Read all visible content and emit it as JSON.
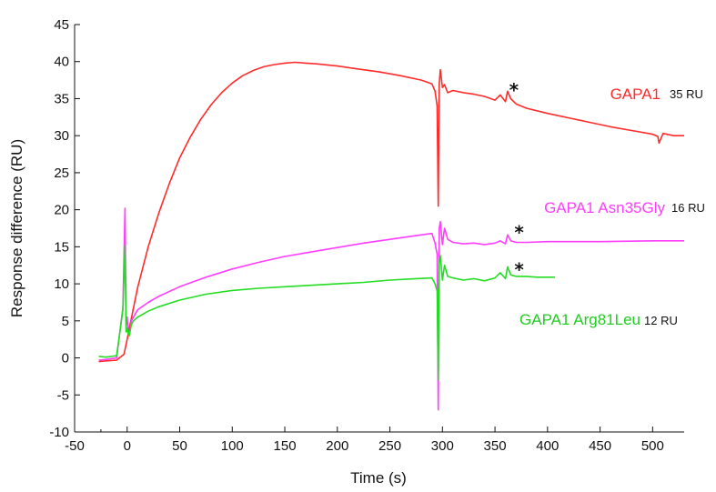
{
  "chart_data": {
    "type": "line",
    "title": "",
    "xlabel": "Time (s)",
    "ylabel": "Response difference (RU)",
    "xlim": [
      -50,
      530
    ],
    "ylim": [
      -10,
      45
    ],
    "xticks": [
      -50,
      -25,
      0,
      50,
      100,
      150,
      200,
      250,
      300,
      350,
      400,
      450,
      500
    ],
    "xtick_labels": [
      "-50",
      "",
      "0",
      "50",
      "100",
      "150",
      "200",
      "250",
      "300",
      "350",
      "400",
      "450",
      "500"
    ],
    "yticks": [
      -10,
      -5,
      0,
      5,
      10,
      15,
      20,
      25,
      30,
      35,
      40,
      45
    ],
    "ytick_labels": [
      "-10",
      "-5",
      "0",
      "5",
      "10",
      "15",
      "20",
      "25",
      "30",
      "35",
      "40",
      "45"
    ],
    "grid": false,
    "series": [
      {
        "name": "GAPA1",
        "response_label": "35 RU",
        "color": "#ff2b2b",
        "x": [
          -27,
          -20,
          -10,
          -3,
          0,
          2,
          5,
          10,
          20,
          30,
          40,
          50,
          60,
          70,
          80,
          90,
          100,
          110,
          120,
          130,
          140,
          150,
          160,
          170,
          180,
          200,
          220,
          240,
          260,
          280,
          290,
          293,
          295,
          296,
          297,
          298,
          300,
          302,
          305,
          310,
          320,
          330,
          340,
          350,
          355,
          360,
          362,
          365,
          370,
          380,
          400,
          420,
          440,
          460,
          480,
          500,
          505,
          506,
          510,
          520,
          530
        ],
        "y": [
          -0.5,
          -0.4,
          -0.3,
          0.5,
          2.5,
          4.0,
          6.0,
          9.5,
          15.0,
          19.5,
          23.5,
          27.0,
          29.8,
          32.2,
          34.2,
          35.8,
          37.1,
          38.1,
          38.8,
          39.3,
          39.6,
          39.8,
          39.9,
          39.8,
          39.7,
          39.4,
          39.0,
          38.6,
          38.1,
          37.5,
          37.0,
          36.0,
          34.0,
          20.5,
          37.0,
          38.9,
          36.5,
          36.9,
          35.8,
          36.1,
          35.8,
          35.6,
          35.3,
          34.8,
          35.5,
          34.6,
          36.0,
          35.0,
          34.3,
          33.7,
          33.0,
          32.4,
          31.8,
          31.2,
          30.7,
          30.2,
          29.9,
          29.0,
          30.3,
          30.0,
          30.0
        ]
      },
      {
        "name": "GAPA1 Asn35Gly",
        "response_label": "16 RU",
        "color": "#ff3dff",
        "x": [
          -27,
          -20,
          -10,
          -4,
          -2,
          -1,
          0,
          1,
          2,
          4,
          6,
          10,
          20,
          30,
          50,
          75,
          100,
          125,
          150,
          175,
          200,
          225,
          250,
          275,
          290,
          293,
          295,
          296,
          297,
          298,
          300,
          302,
          305,
          310,
          320,
          330,
          340,
          350,
          355,
          360,
          362,
          365,
          370,
          380,
          400,
          450,
          500,
          530
        ],
        "y": [
          -0.3,
          -0.2,
          0.0,
          6.8,
          20.2,
          4.5,
          5.5,
          3.5,
          3.0,
          5.0,
          5.5,
          6.5,
          7.5,
          8.3,
          9.6,
          10.9,
          12.0,
          12.9,
          13.7,
          14.3,
          14.9,
          15.5,
          16.0,
          16.5,
          16.8,
          15.5,
          14.0,
          -7.0,
          17.5,
          18.4,
          15.3,
          17.5,
          16.0,
          15.6,
          15.4,
          15.5,
          15.3,
          15.5,
          15.8,
          15.4,
          16.6,
          15.8,
          15.6,
          15.6,
          15.7,
          15.7,
          15.8,
          15.8
        ]
      },
      {
        "name": "GAPA1 Arg81Leu",
        "response_label": "12 RU",
        "color": "#22dd22",
        "x": [
          -27,
          -20,
          -10,
          -4,
          -2,
          -1,
          0,
          1,
          2,
          4,
          6,
          10,
          20,
          30,
          50,
          75,
          100,
          125,
          150,
          175,
          200,
          225,
          250,
          275,
          290,
          293,
          295,
          296,
          297,
          298,
          300,
          302,
          305,
          310,
          320,
          330,
          340,
          350,
          355,
          360,
          362,
          365,
          370,
          380,
          390,
          400,
          407
        ],
        "y": [
          0.2,
          0.1,
          0.3,
          6.5,
          15.2,
          3.5,
          4.0,
          3.2,
          3.0,
          4.5,
          5.0,
          5.5,
          6.3,
          6.9,
          7.8,
          8.6,
          9.1,
          9.4,
          9.6,
          9.8,
          10.0,
          10.2,
          10.5,
          10.7,
          10.8,
          10.0,
          9.0,
          -3.0,
          13.0,
          13.8,
          10.5,
          12.5,
          11.0,
          10.8,
          10.5,
          10.7,
          10.4,
          10.8,
          11.5,
          10.7,
          12.3,
          11.2,
          11.0,
          11.0,
          10.9,
          10.9,
          10.9
        ]
      }
    ],
    "annotations": [
      {
        "text": "*",
        "x": 368,
        "y": 36.5
      },
      {
        "text": "*",
        "x": 373,
        "y": 17.3
      },
      {
        "text": "*",
        "x": 373,
        "y": 12.3
      }
    ]
  }
}
